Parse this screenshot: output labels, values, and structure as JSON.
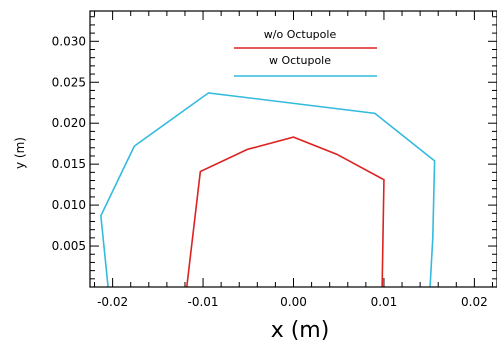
{
  "chart_data": {
    "type": "line",
    "xlabel": "x (m)",
    "ylabel": "y (m)",
    "xlim": [
      -0.0225,
      0.0225
    ],
    "ylim": [
      0.0,
      0.0337
    ],
    "xticks": [
      -0.02,
      -0.01,
      0.0,
      0.01,
      0.02
    ],
    "xtick_labels": [
      "-0.02",
      "-0.01",
      "0.00",
      "0.01",
      "0.02"
    ],
    "yticks": [
      0.005,
      0.01,
      0.015,
      0.02,
      0.025,
      0.03
    ],
    "ytick_labels": [
      "0.005",
      "0.010",
      "0.015",
      "0.020",
      "0.025",
      "0.030"
    ],
    "legend_position": "top-center",
    "series": [
      {
        "name": "w/o Octupole",
        "color": "#dd2222",
        "x": [
          -0.0118,
          -0.0103,
          -0.0051,
          0.0,
          0.0048,
          0.01,
          0.0098
        ],
        "y": [
          0.0,
          0.0141,
          0.0168,
          0.0183,
          0.0162,
          0.0131,
          0.0
        ]
      },
      {
        "name": "w Octupole",
        "color": "#33bbdd",
        "x": [
          -0.0205,
          -0.0213,
          -0.0176,
          -0.0094,
          0.009,
          0.0156,
          0.0154,
          0.0151
        ],
        "y": [
          0.0,
          0.0087,
          0.0172,
          0.0237,
          0.0212,
          0.0154,
          0.006,
          0.0
        ]
      }
    ]
  }
}
